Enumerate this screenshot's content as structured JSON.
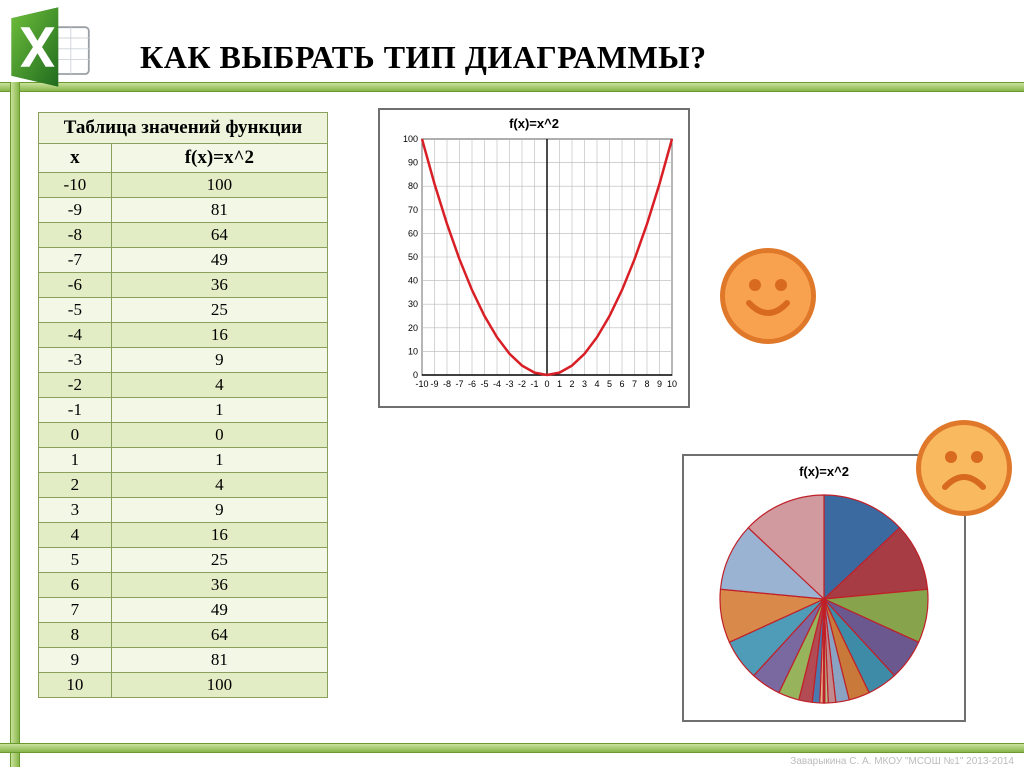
{
  "title": "КАК ВЫБРАТЬ ТИП ДИАГРАММЫ?",
  "table": {
    "header": "Таблица значений функции",
    "col_x": "x",
    "col_f": "f(x)=x^2",
    "rows": [
      {
        "x": "-10",
        "f": "100"
      },
      {
        "x": "-9",
        "f": "81"
      },
      {
        "x": "-8",
        "f": "64"
      },
      {
        "x": "-7",
        "f": "49"
      },
      {
        "x": "-6",
        "f": "36"
      },
      {
        "x": "-5",
        "f": "25"
      },
      {
        "x": "-4",
        "f": "16"
      },
      {
        "x": "-3",
        "f": "9"
      },
      {
        "x": "-2",
        "f": "4"
      },
      {
        "x": "-1",
        "f": "1"
      },
      {
        "x": "0",
        "f": "0"
      },
      {
        "x": "1",
        "f": "1"
      },
      {
        "x": "2",
        "f": "4"
      },
      {
        "x": "3",
        "f": "9"
      },
      {
        "x": "4",
        "f": "16"
      },
      {
        "x": "5",
        "f": "25"
      },
      {
        "x": "6",
        "f": "36"
      },
      {
        "x": "7",
        "f": "49"
      },
      {
        "x": "8",
        "f": "64"
      },
      {
        "x": "9",
        "f": "81"
      },
      {
        "x": "10",
        "f": "100"
      }
    ],
    "row_colors": [
      "#f2f7e6",
      "#e2ecc5"
    ],
    "border_color": "#8aa05c",
    "header_fontsize": 19,
    "cell_fontsize": 17
  },
  "line_chart": {
    "type": "line",
    "title": "f(x)=x^2",
    "title_fontsize": 13,
    "x": [
      -10,
      -9,
      -8,
      -7,
      -6,
      -5,
      -4,
      -3,
      -2,
      -1,
      0,
      1,
      2,
      3,
      4,
      5,
      6,
      7,
      8,
      9,
      10
    ],
    "y": [
      100,
      81,
      64,
      49,
      36,
      25,
      16,
      9,
      4,
      1,
      0,
      1,
      4,
      9,
      16,
      25,
      36,
      49,
      64,
      81,
      100
    ],
    "xlim": [
      -10,
      10
    ],
    "ylim": [
      0,
      100
    ],
    "xtick_step": 1,
    "ytick_step": 10,
    "line_color": "#d81f26",
    "line_width": 2.5,
    "grid_color": "#b8b8b8",
    "axis_color": "#000000",
    "background_color": "#ffffff",
    "tick_fontsize": 9
  },
  "pie_chart": {
    "type": "pie",
    "title": "f(x)=x^2",
    "title_fontsize": 13,
    "values": [
      100,
      81,
      64,
      49,
      36,
      25,
      16,
      9,
      4,
      1,
      0,
      1,
      4,
      9,
      16,
      25,
      36,
      49,
      64,
      81,
      100
    ],
    "colors": [
      "#3b6aa0",
      "#a73c44",
      "#87a34c",
      "#6a588e",
      "#3e8ba8",
      "#c97a3a",
      "#8aa3c2",
      "#c08a8e",
      "#b3c48a",
      "#a196b8",
      "#d81f26",
      "#8ec2d0",
      "#e0b088",
      "#4a79af",
      "#b24b53",
      "#97b35c",
      "#7a68a0",
      "#4e9cb8",
      "#d98a4a",
      "#9ab3d2",
      "#d09a9e"
    ],
    "border_color": "#c02028",
    "border_width": 1.2,
    "background_color": "#ffffff"
  },
  "faces": {
    "happy_color": "#f8a24f",
    "sad_color": "#f9b95f",
    "stroke": "#e0782a",
    "feature_color": "#d86a1f"
  },
  "footer": "Заварыкина С. А.  МКОУ \"МСОШ №1\"  2013-2014"
}
